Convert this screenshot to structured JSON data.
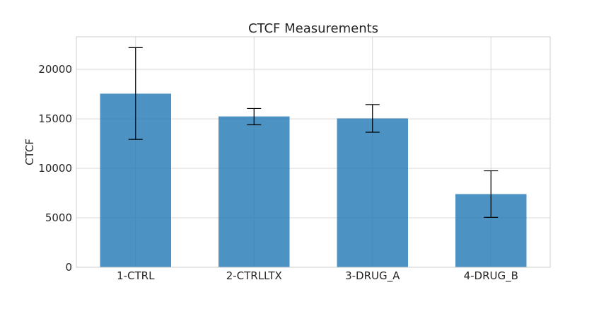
{
  "chart_data": {
    "type": "bar",
    "title": "CTCF Measurements",
    "xlabel": "",
    "ylabel": "CTCF",
    "categories": [
      "1-CTRL",
      "2-CTRLLTX",
      "3-DRUG_A",
      "4-DRUG_B"
    ],
    "values": [
      17550,
      15250,
      15050,
      7400
    ],
    "error_low": [
      12930,
      14400,
      13650,
      5050
    ],
    "error_high": [
      22200,
      16050,
      16450,
      9750
    ],
    "ylim": [
      0,
      23300
    ],
    "yticks": [
      0,
      5000,
      10000,
      15000,
      20000
    ],
    "ytick_labels": [
      "0",
      "5000",
      "10000",
      "15000",
      "20000"
    ],
    "grid": true,
    "bar_color": "#1f77b4",
    "error_color": "#000000"
  }
}
